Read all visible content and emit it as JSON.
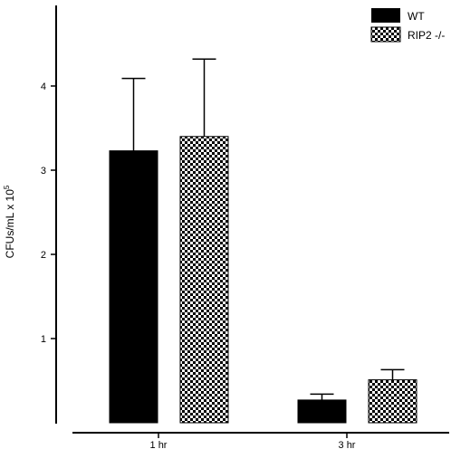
{
  "chart_data": {
    "type": "bar",
    "title": "",
    "xlabel": "",
    "ylabel": "CFUs/mL x 10",
    "ylabel_superscript": "5",
    "categories": [
      "1 hr",
      "3 hr"
    ],
    "yticks": [
      "1",
      "2",
      "3",
      "4"
    ],
    "ylim": [
      0,
      5
    ],
    "legend_position": "top-right",
    "series": [
      {
        "name": "WT",
        "pattern": "solid",
        "color": "#000000",
        "values": [
          3.23,
          0.27
        ],
        "errors": [
          0.86,
          0.07
        ]
      },
      {
        "name": "RIP2 -/-",
        "pattern": "checkerboard",
        "color": "#000000",
        "values": [
          3.4,
          0.51
        ],
        "errors": [
          0.92,
          0.12
        ]
      }
    ]
  }
}
